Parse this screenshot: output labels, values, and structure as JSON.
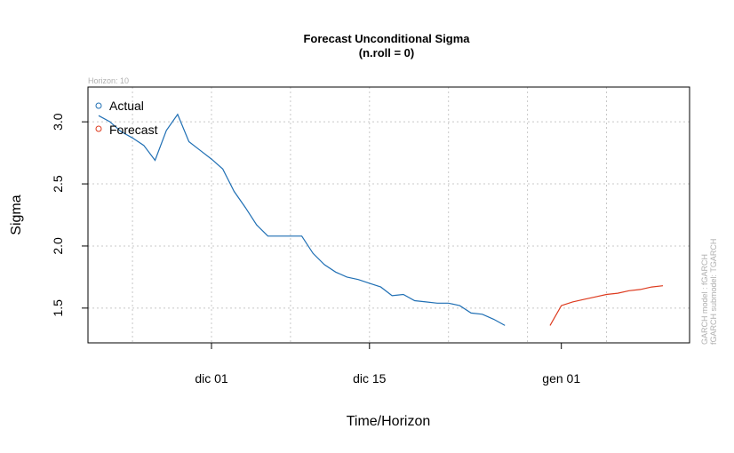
{
  "chart_data": {
    "type": "line",
    "title": "Forecast Unconditional Sigma",
    "subtitle": "(n.roll = 0)",
    "xlabel": "Time/Horizon",
    "ylabel": "Sigma",
    "horizon_note": "Horizon: 10",
    "side_notes": [
      "GARCH model :  fGARCH",
      "fGARCH submodel: TGARCH"
    ],
    "x_ticks": [
      {
        "day": 10,
        "label": "dic 01"
      },
      {
        "day": 24,
        "label": "dic 15"
      },
      {
        "day": 41,
        "label": "gen 01"
      }
    ],
    "y_ticks": [
      {
        "value": 1.5,
        "label": "1.5"
      },
      {
        "value": 2.0,
        "label": "2.0"
      },
      {
        "value": 2.5,
        "label": "2.5"
      },
      {
        "value": 3.0,
        "label": "3.0"
      }
    ],
    "xlim": [
      0,
      50
    ],
    "ylim": [
      1.22,
      3.28
    ],
    "grid": true,
    "legend_position": "top-left",
    "series": [
      {
        "name": "Actual",
        "color": "#1f6fb4",
        "x": [
          0,
          1,
          2,
          3,
          4,
          5,
          6,
          7,
          8,
          9,
          10,
          11,
          12,
          13,
          14,
          15,
          16,
          17,
          18,
          19,
          20,
          21,
          22,
          23,
          24,
          25,
          26,
          27,
          28,
          29,
          30,
          31,
          32,
          33,
          34,
          35,
          36,
          37,
          38,
          39,
          40
        ],
        "values": [
          3.05,
          3.0,
          2.92,
          2.87,
          2.81,
          2.69,
          2.93,
          3.06,
          2.84,
          2.77,
          2.7,
          2.62,
          2.44,
          2.31,
          2.17,
          2.08,
          2.08,
          2.08,
          2.08,
          1.94,
          1.85,
          1.79,
          1.75,
          1.73,
          1.7,
          1.67,
          1.6,
          1.61,
          1.56,
          1.55,
          1.54,
          1.54,
          1.52,
          1.46,
          1.45,
          1.41,
          1.36,
          null,
          null,
          null,
          null
        ]
      },
      {
        "name": "Forecast",
        "color": "#dd3a1e",
        "x": [
          40,
          41,
          42,
          43,
          44,
          45,
          46,
          47,
          48,
          49,
          50
        ],
        "values": [
          1.36,
          1.52,
          1.55,
          1.57,
          1.59,
          1.61,
          1.62,
          1.64,
          1.65,
          1.67,
          1.68
        ]
      }
    ]
  }
}
